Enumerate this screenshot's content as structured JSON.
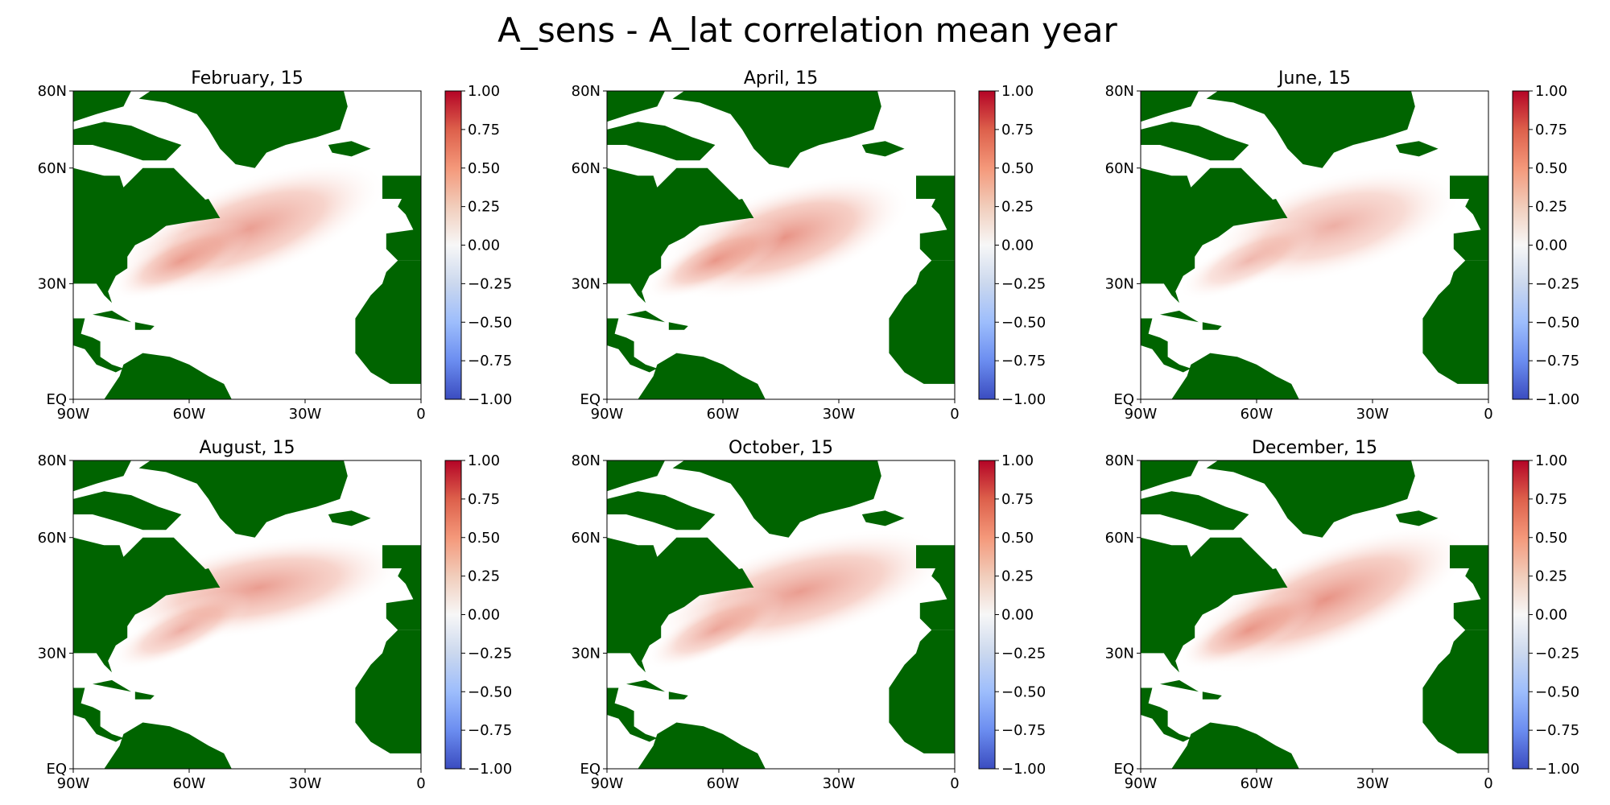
{
  "figure": {
    "title": "A_sens - A_lat correlation mean year"
  },
  "chart_data": [
    {
      "type": "heatmap",
      "title": "February, 15",
      "x_ticks": [
        "90W",
        "60W",
        "30W",
        "0"
      ],
      "y_ticks": [
        "80N",
        "60N",
        "30N",
        "EQ"
      ],
      "xlim": [
        "90W",
        "0"
      ],
      "ylim": [
        "EQ",
        "80N"
      ],
      "colorbar": {
        "min": -1.0,
        "max": 1.0,
        "ticks": [
          "1.00",
          "0.75",
          "0.50",
          "0.25",
          "0.00",
          "−0.25",
          "−0.50",
          "−0.75",
          "−1.00"
        ],
        "colormap": "coolwarm"
      },
      "land_color": "#006400",
      "peak_value": 0.55
    },
    {
      "type": "heatmap",
      "title": "April, 15",
      "x_ticks": [
        "90W",
        "60W",
        "30W",
        "0"
      ],
      "y_ticks": [
        "80N",
        "60N",
        "30N",
        "EQ"
      ],
      "xlim": [
        "90W",
        "0"
      ],
      "ylim": [
        "EQ",
        "80N"
      ],
      "colorbar": {
        "min": -1.0,
        "max": 1.0,
        "ticks": [
          "1.00",
          "0.75",
          "0.50",
          "0.25",
          "0.00",
          "−0.25",
          "−0.50",
          "−0.75",
          "−1.00"
        ],
        "colormap": "coolwarm"
      },
      "land_color": "#006400",
      "peak_value": 0.6
    },
    {
      "type": "heatmap",
      "title": "June, 15",
      "x_ticks": [
        "90W",
        "60W",
        "30W",
        "0"
      ],
      "y_ticks": [
        "80N",
        "60N",
        "30N",
        "EQ"
      ],
      "xlim": [
        "90W",
        "0"
      ],
      "ylim": [
        "EQ",
        "80N"
      ],
      "colorbar": {
        "min": -1.0,
        "max": 1.0,
        "ticks": [
          "1.00",
          "0.75",
          "0.50",
          "0.25",
          "0.00",
          "−0.25",
          "−0.50",
          "−0.75",
          "−1.00"
        ],
        "colormap": "coolwarm"
      },
      "land_color": "#006400",
      "peak_value": 0.45
    },
    {
      "type": "heatmap",
      "title": "August, 15",
      "x_ticks": [
        "90W",
        "60W",
        "30W",
        "0"
      ],
      "y_ticks": [
        "80N",
        "60N",
        "30N",
        "EQ"
      ],
      "xlim": [
        "90W",
        "0"
      ],
      "ylim": [
        "EQ",
        "80N"
      ],
      "colorbar": {
        "min": -1.0,
        "max": 1.0,
        "ticks": [
          "1.00",
          "0.75",
          "0.50",
          "0.25",
          "0.00",
          "−0.25",
          "−0.50",
          "−0.75",
          "−1.00"
        ],
        "colormap": "coolwarm"
      },
      "land_color": "#006400",
      "peak_value": 0.55
    },
    {
      "type": "heatmap",
      "title": "October, 15",
      "x_ticks": [
        "90W",
        "60W",
        "30W",
        "0"
      ],
      "y_ticks": [
        "80N",
        "60N",
        "30N",
        "EQ"
      ],
      "xlim": [
        "90W",
        "0"
      ],
      "ylim": [
        "EQ",
        "80N"
      ],
      "colorbar": {
        "min": -1.0,
        "max": 1.0,
        "ticks": [
          "1.00",
          "0.75",
          "0.50",
          "0.25",
          "0.00",
          "−0.25",
          "−0.50",
          "−0.75",
          "−1.00"
        ],
        "colormap": "coolwarm"
      },
      "land_color": "#006400",
      "peak_value": 0.55
    },
    {
      "type": "heatmap",
      "title": "December, 15",
      "x_ticks": [
        "90W",
        "60W",
        "30W",
        "0"
      ],
      "y_ticks": [
        "80N",
        "60N",
        "30N",
        "EQ"
      ],
      "xlim": [
        "90W",
        "0"
      ],
      "ylim": [
        "EQ",
        "80N"
      ],
      "colorbar": {
        "min": -1.0,
        "max": 1.0,
        "ticks": [
          "1.00",
          "0.75",
          "0.50",
          "0.25",
          "0.00",
          "−0.25",
          "−0.50",
          "−0.75",
          "−1.00"
        ],
        "colormap": "coolwarm"
      },
      "land_color": "#006400",
      "peak_value": 0.6
    }
  ]
}
